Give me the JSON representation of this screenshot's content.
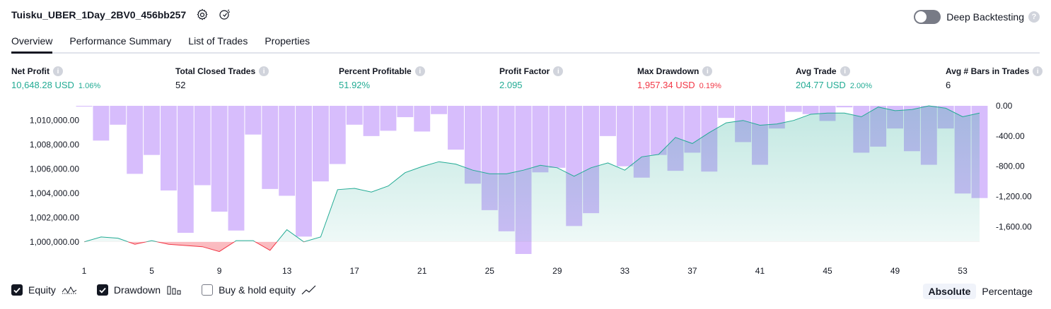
{
  "header": {
    "title": "Tuisku_UBER_1Day_2BV0_456bb257",
    "deep_backtesting_label": "Deep Backtesting"
  },
  "tabs": [
    "Overview",
    "Performance Summary",
    "List of Trades",
    "Properties"
  ],
  "metrics": [
    {
      "label": "Net Profit",
      "value": "10,648.28 USD",
      "sub": "1.06%",
      "tone": "pos"
    },
    {
      "label": "Total Closed Trades",
      "value": "52",
      "sub": "",
      "tone": "neutral"
    },
    {
      "label": "Percent Profitable",
      "value": "51.92%",
      "sub": "",
      "tone": "pos"
    },
    {
      "label": "Profit Factor",
      "value": "2.095",
      "sub": "",
      "tone": "pos"
    },
    {
      "label": "Max Drawdown",
      "value": "1,957.34 USD",
      "sub": "0.19%",
      "tone": "neg"
    },
    {
      "label": "Avg Trade",
      "value": "204.77 USD",
      "sub": "2.00%",
      "tone": "pos"
    },
    {
      "label": "Avg # Bars in Trades",
      "value": "6",
      "sub": "",
      "tone": "neutral"
    }
  ],
  "legend": {
    "equity": "Equity",
    "drawdown": "Drawdown",
    "buy_hold": "Buy & hold equity",
    "equity_checked": true,
    "drawdown_checked": true,
    "buy_hold_checked": false
  },
  "modes": {
    "absolute": "Absolute",
    "percentage": "Percentage",
    "selected": "Absolute"
  },
  "chart_data": {
    "type": "line",
    "x_ticks": [
      "1",
      "5",
      "9",
      "13",
      "17",
      "21",
      "25",
      "29",
      "33",
      "37",
      "41",
      "45",
      "49",
      "53"
    ],
    "left_axis": {
      "ticks": [
        "1,010,000.00",
        "1,008,000.00",
        "1,006,000.00",
        "1,004,000.00",
        "1,002,000.00",
        "1,000,000.00"
      ],
      "tick_values": [
        1010000,
        1008000,
        1006000,
        1004000,
        1002000,
        1000000
      ],
      "range": [
        999000,
        1011200
      ]
    },
    "right_axis": {
      "ticks": [
        "0.00",
        "-400.00",
        "-800.00",
        "-1,200.00",
        "-1,600.00"
      ],
      "tick_values": [
        0,
        -400,
        -800,
        -1200,
        -1600
      ],
      "range": [
        -1960,
        0
      ]
    },
    "equity_baseline": 1000000,
    "series": [
      {
        "type": "area",
        "values": [
          1000000,
          1000400,
          1000300,
          999800,
          1000100,
          999800,
          999700,
          999600,
          999200,
          1000100,
          1000100,
          999300,
          1001000,
          1000000,
          1000400,
          1004300,
          1004400,
          1004100,
          1004600,
          1005700,
          1006200,
          1006600,
          1006400,
          1005900,
          1005600,
          1005600,
          1005900,
          1006300,
          1006100,
          1005400,
          1006100,
          1006500,
          1005900,
          1007000,
          1007200,
          1008600,
          1008100,
          1009000,
          1009800,
          1010000,
          1009600,
          1009700,
          1010000,
          1010500,
          1010600,
          1010600,
          1010300,
          1011100,
          1010800,
          1010900,
          1011200,
          1011000,
          1010300,
          1010600
        ],
        "positive_color": "#22ab94",
        "negative_color": "#f23645"
      },
      {
        "type": "bar",
        "values": [
          -10,
          -460,
          -250,
          -900,
          -650,
          -1120,
          -1680,
          -1050,
          -1400,
          -1650,
          -380,
          -1100,
          -1190,
          -1730,
          -1000,
          -770,
          -250,
          -400,
          -330,
          -150,
          -340,
          -110,
          -580,
          -1030,
          -1380,
          -1660,
          -1960,
          -880,
          -820,
          -1590,
          -1420,
          -400,
          -800,
          -950,
          -650,
          -860,
          -620,
          -870,
          -160,
          -480,
          -780,
          -300,
          -80,
          -110,
          -200,
          -20,
          -620,
          -540,
          -300,
          -600,
          -780,
          -300,
          -1160,
          -1220
        ],
        "color": "#c9a7fb"
      }
    ]
  }
}
